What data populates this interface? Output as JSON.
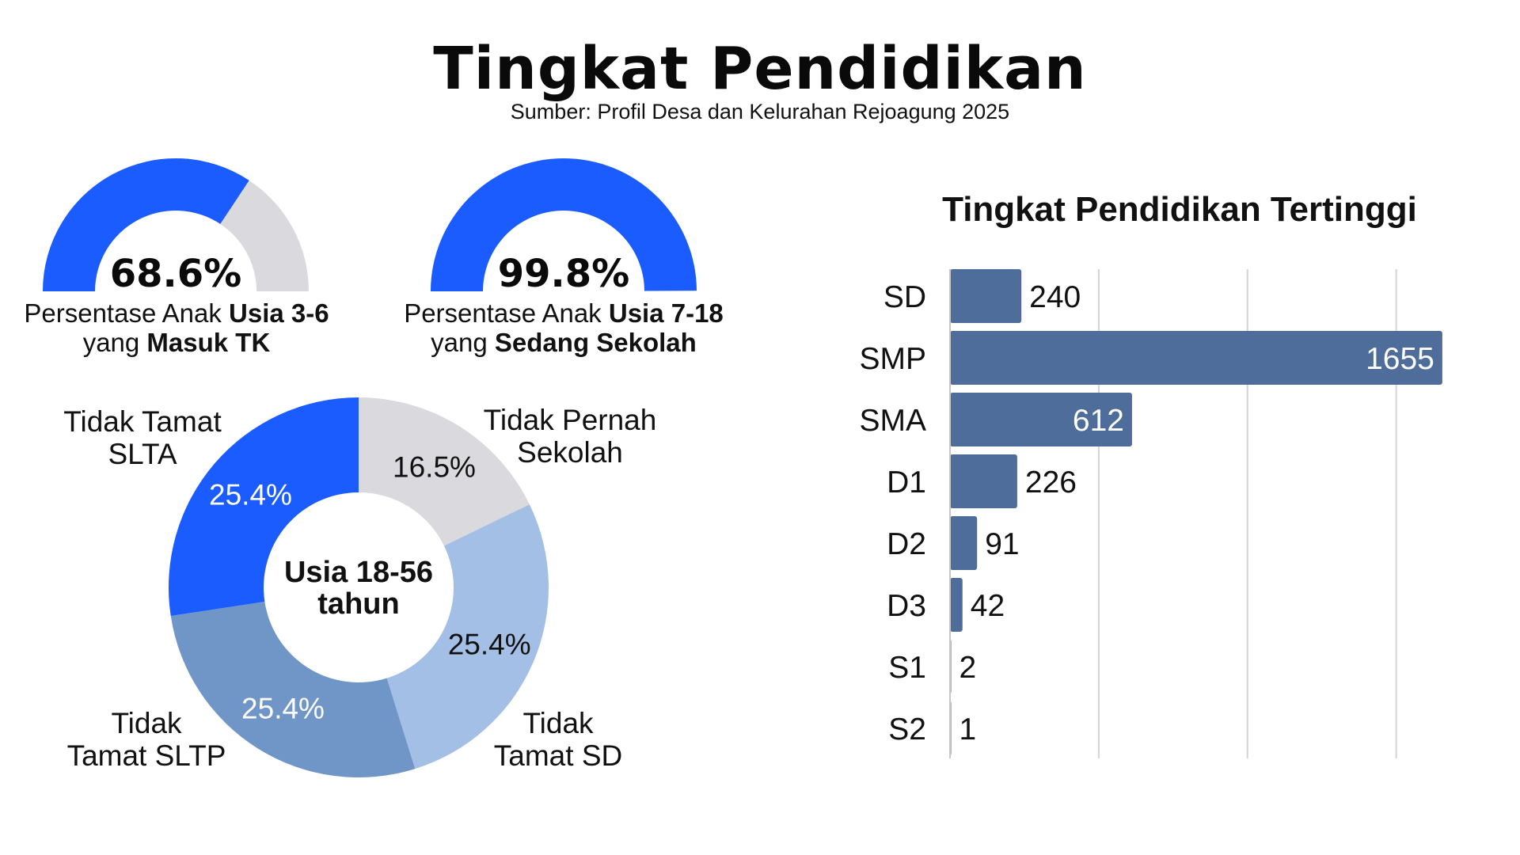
{
  "title": "Tingkat Pendidikan",
  "subtitle": "Sumber: Profil Desa dan Kelurahan Rejoagung 2025",
  "gauges": [
    {
      "value": 68.6,
      "value_label": "68.6%",
      "caption_line1_prefix": "Persentase Anak ",
      "caption_line1_bold": "Usia 3-6",
      "caption_line2_prefix": "yang ",
      "caption_line2_bold": "Masuk TK",
      "fill_color": "#1a5cff",
      "track_color": "#d9d9de"
    },
    {
      "value": 99.8,
      "value_label": "99.8%",
      "caption_line1_prefix": "Persentase Anak ",
      "caption_line1_bold": "Usia 7-18",
      "caption_line2_prefix": "yang ",
      "caption_line2_bold": "Sedang Sekolah",
      "fill_color": "#1a5cff",
      "track_color": "#d9d9de"
    }
  ],
  "donut": {
    "center_line1": "Usia 18-56",
    "center_line2": "tahun",
    "segments": [
      {
        "label_lines": [
          "Tidak Pernah",
          "Sekolah"
        ],
        "value": 16.5,
        "pct_label": "16.5%",
        "color": "#d9d9de",
        "pct_color": "#111111"
      },
      {
        "label_lines": [
          "Tidak",
          "Tamat SD"
        ],
        "value": 25.4,
        "pct_label": "25.4%",
        "color": "#a3bfe6",
        "pct_color": "#111111"
      },
      {
        "label_lines": [
          "Tidak",
          "Tamat SLTP"
        ],
        "value": 25.4,
        "pct_label": "25.4%",
        "color": "#7096c8",
        "pct_color": "#ffffff"
      },
      {
        "label_lines": [
          "Tidak Tamat",
          "SLTA"
        ],
        "value": 25.4,
        "pct_label": "25.4%",
        "color": "#1a5cff",
        "pct_color": "#ffffff"
      }
    ]
  },
  "chart_data": {
    "type": "bar",
    "orientation": "horizontal",
    "title": "Tingkat Pendidikan Tertinggi",
    "categories": [
      "SD",
      "SMP",
      "SMA",
      "D1",
      "D2",
      "D3",
      "S1",
      "S2"
    ],
    "values": [
      240,
      1655,
      612,
      226,
      91,
      42,
      2,
      1
    ],
    "xlim": [
      0,
      1650
    ],
    "grid": true,
    "bar_color": "#4f6d9b"
  }
}
